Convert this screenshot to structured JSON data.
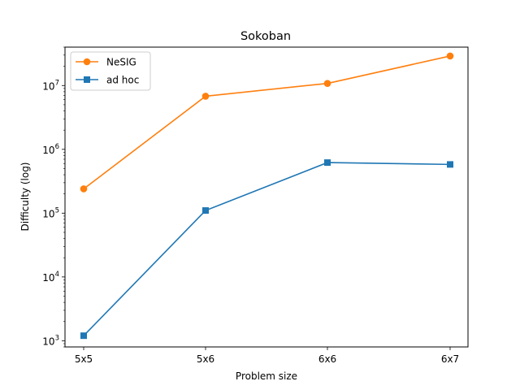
{
  "chart_data": {
    "type": "line",
    "title": "Sokoban",
    "xlabel": "Problem size",
    "ylabel": "Difficulty (log)",
    "categories": [
      "5x5",
      "5x6",
      "6x6",
      "6x7"
    ],
    "y_scale": "log",
    "ylim": [
      800,
      40000000
    ],
    "y_ticks": [
      {
        "value": 1000,
        "base": "10",
        "exp": "3"
      },
      {
        "value": 10000,
        "base": "10",
        "exp": "4"
      },
      {
        "value": 100000,
        "base": "10",
        "exp": "5"
      },
      {
        "value": 1000000,
        "base": "10",
        "exp": "6"
      },
      {
        "value": 10000000,
        "base": "10",
        "exp": "7"
      }
    ],
    "grid": false,
    "legend_position": "top-left",
    "series": [
      {
        "name": "NeSIG",
        "color": "#ff7f0e",
        "marker": "circle",
        "values": [
          240000,
          6800000,
          10800000,
          29000000
        ]
      },
      {
        "name": "ad hoc",
        "color": "#1f77b4",
        "marker": "square",
        "values": [
          1200,
          110000,
          620000,
          580000
        ]
      }
    ]
  }
}
